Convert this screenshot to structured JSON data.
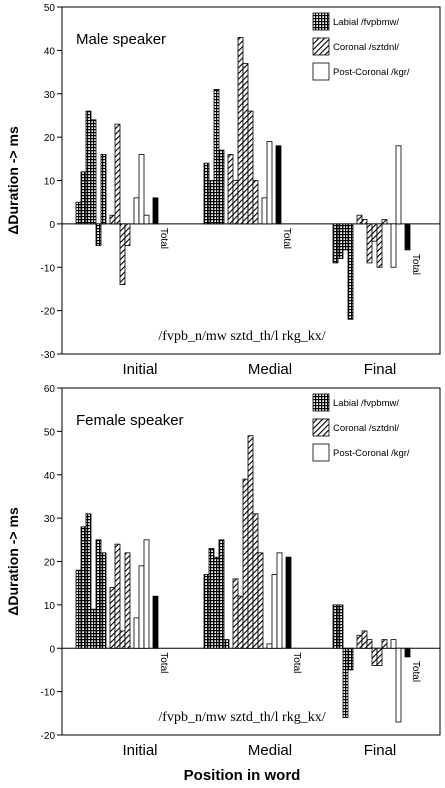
{
  "chart_data": [
    {
      "type": "bar",
      "title": "Male speaker",
      "ylabel": "ΔDuration -> ms",
      "xlabel": "",
      "ylim": [
        -30,
        50
      ],
      "yticks": [
        -30,
        -20,
        -10,
        0,
        10,
        20,
        30,
        40,
        50
      ],
      "categories": [
        "Initial",
        "Medial",
        "Final"
      ],
      "total_label": "Total",
      "phoneme_line": "/fvpb_n/mw sztd_th/l rkg_kx/",
      "legend": [
        {
          "name": "Labial /fvpbmw/",
          "pattern": "labial"
        },
        {
          "name": "Coronal /sztdnl/",
          "pattern": "coronal"
        },
        {
          "name": "Post-Coronal /kgr/",
          "pattern": "postcoronal"
        }
      ],
      "legend_placement": "top-right",
      "groups": [
        {
          "labial": [
            5,
            12,
            26,
            24,
            -5,
            16
          ],
          "coronal": [
            2,
            23,
            -14,
            -5
          ],
          "postcoronal": [
            6,
            16,
            2
          ],
          "total": 6
        },
        {
          "labial": [
            14,
            10,
            31,
            17
          ],
          "coronal": [
            16,
            10,
            43,
            37,
            26,
            10
          ],
          "postcoronal": [
            6,
            19
          ],
          "total": 18
        },
        {
          "labial": [
            -9,
            -8,
            -6,
            -22
          ],
          "coronal": [
            2,
            1,
            -9,
            -4,
            -10,
            1
          ],
          "postcoronal": [
            -10,
            18
          ],
          "total": -6
        }
      ]
    },
    {
      "type": "bar",
      "title": "Female speaker",
      "ylabel": "ΔDuration -> ms",
      "xlabel": "Position in word",
      "ylim": [
        -20,
        60
      ],
      "yticks": [
        -20,
        -10,
        0,
        10,
        20,
        30,
        40,
        50,
        60
      ],
      "categories": [
        "Initial",
        "Medial",
        "Final"
      ],
      "total_label": "Total",
      "phoneme_line": "/fvpb_n/mw sztd_th/l rkg_kx/",
      "legend": [
        {
          "name": "Labial /fvpbmw/",
          "pattern": "labial"
        },
        {
          "name": "Coronal /sztdnl/",
          "pattern": "coronal"
        },
        {
          "name": "Post-Coronal /kgr/",
          "pattern": "postcoronal"
        }
      ],
      "legend_placement": "top-right",
      "groups": [
        {
          "labial": [
            18,
            28,
            31,
            9,
            25,
            22
          ],
          "coronal": [
            14,
            24,
            4,
            22
          ],
          "postcoronal": [
            7,
            19,
            25
          ],
          "total": 12
        },
        {
          "labial": [
            17,
            23,
            21,
            25,
            2
          ],
          "coronal": [
            16,
            12,
            39,
            49,
            31,
            22
          ],
          "postcoronal": [
            1,
            17,
            22
          ],
          "total": 21
        },
        {
          "labial": [
            10,
            10,
            -16,
            -5
          ],
          "coronal": [
            3,
            4,
            2,
            -4,
            -4,
            2
          ],
          "postcoronal": [
            2,
            -17
          ],
          "total": -2
        }
      ]
    }
  ]
}
